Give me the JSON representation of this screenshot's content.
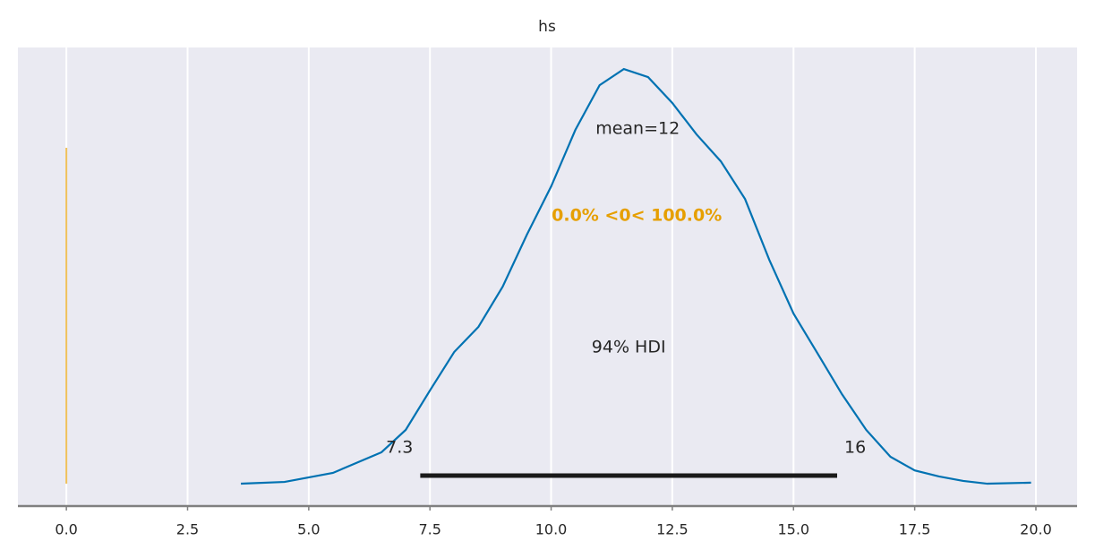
{
  "chart_data": {
    "type": "kde",
    "title": "hs",
    "series": [
      {
        "color": "#0072b2",
        "x": [
          3.6,
          4.5,
          5.5,
          6.5,
          7.0,
          7.5,
          8.0,
          8.5,
          9.0,
          9.5,
          10.0,
          10.5,
          11.0,
          11.5,
          12.0,
          12.5,
          13.0,
          13.5,
          14.0,
          14.5,
          15.0,
          15.5,
          16.0,
          16.5,
          17.0,
          17.5,
          18.0,
          18.5,
          19.0,
          19.9
        ],
        "y": [
          0.0,
          0.0007,
          0.0043,
          0.0125,
          0.0214,
          0.0371,
          0.0524,
          0.0624,
          0.0784,
          0.0991,
          0.1183,
          0.1408,
          0.1586,
          0.165,
          0.1618,
          0.1515,
          0.139,
          0.1283,
          0.1133,
          0.0891,
          0.0677,
          0.0517,
          0.0356,
          0.0214,
          0.0107,
          0.0053,
          0.0029,
          0.0011,
          0.0,
          0.0004
        ]
      }
    ],
    "mean_label": "mean=12",
    "hdi_label": "94% HDI",
    "hdi": [
      7.3,
      15.9
    ],
    "hdi_labels": [
      "7.3",
      "16"
    ],
    "hdi_color": "#1a1a1a",
    "ref_val": 0,
    "ref_label": "0.0% <0< 100.0%",
    "ref_color": "#e69f00",
    "xlim": [
      -1.0,
      20.85
    ],
    "ylim": [
      -0.0089,
      0.1736
    ],
    "xticks": [
      {
        "value": 0,
        "label": "0.0"
      },
      2.5,
      {
        "value": 5,
        "label": "5.0"
      },
      7.5,
      {
        "value": 10,
        "label": "10.0"
      },
      12.5,
      {
        "value": 15,
        "label": "15.0"
      },
      17.5,
      {
        "value": 20,
        "label": "20.0"
      }
    ],
    "grid": true
  }
}
